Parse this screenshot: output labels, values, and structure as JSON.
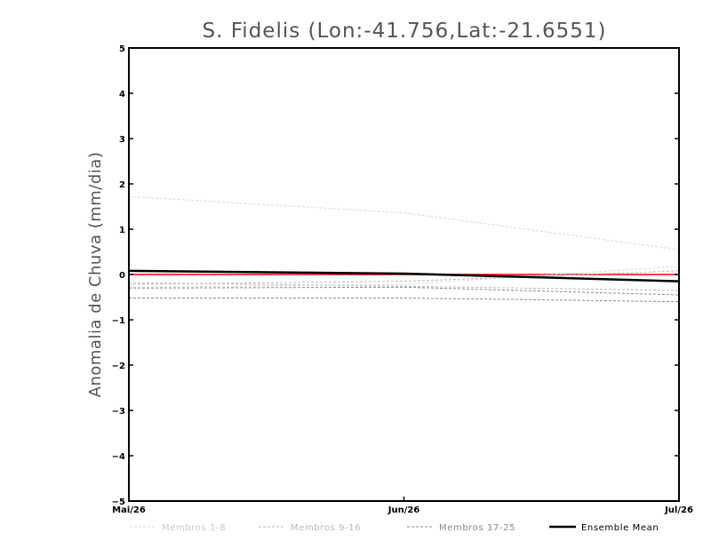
{
  "chart_data": {
    "type": "line",
    "title": "S. Fidelis (Lon:-41.756,Lat:-21.6551)",
    "xlabel": "",
    "ylabel": "Anomalia de Chuva (mm/dia)",
    "categories": [
      "Mai/26",
      "Jun/26",
      "Jul/26"
    ],
    "ylim": [
      -5,
      5
    ],
    "yticks": [
      -5,
      -4,
      -3,
      -2,
      -1,
      0,
      1,
      2,
      3,
      4,
      5
    ],
    "legend_position": "bottom",
    "zero_line_color": "#ff0000",
    "series": [
      {
        "name": "member",
        "group": "Membros 1-8",
        "values": [
          1.72,
          1.36,
          0.55
        ]
      },
      {
        "name": "member",
        "group": "Membros 1-8",
        "values": [
          -0.28,
          -0.22,
          0.18
        ]
      },
      {
        "name": "member",
        "group": "Membros 9-16",
        "values": [
          -0.22,
          -0.15,
          0.08
        ]
      },
      {
        "name": "member",
        "group": "Membros 9-16",
        "values": [
          -0.18,
          -0.26,
          -0.35
        ]
      },
      {
        "name": "member",
        "group": "Membros 17-25",
        "values": [
          -0.3,
          -0.28,
          -0.45
        ]
      },
      {
        "name": "member",
        "group": "Membros 17-25",
        "values": [
          -0.52,
          -0.52,
          -0.6
        ]
      },
      {
        "name": "Ensemble Mean",
        "group": "Ensemble Mean",
        "values": [
          0.08,
          0.02,
          -0.15
        ]
      }
    ],
    "legend": [
      {
        "label": "Membros 1-8",
        "color": "#d8d8d8",
        "style": "dashed"
      },
      {
        "label": "Membros 9-16",
        "color": "#b8b8b8",
        "style": "dashed"
      },
      {
        "label": "Membros 17-25",
        "color": "#8a8a8a",
        "style": "dashed"
      },
      {
        "label": "Ensemble Mean",
        "color": "#000000",
        "style": "solid"
      }
    ]
  }
}
